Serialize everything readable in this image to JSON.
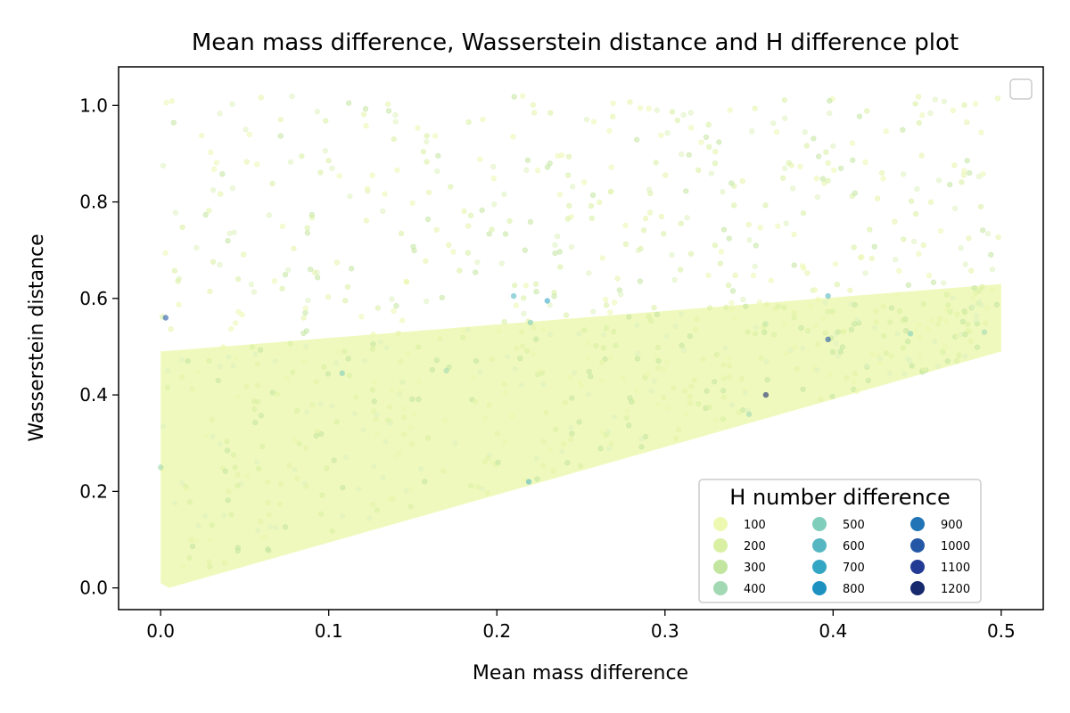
{
  "chart_data": {
    "type": "scatter",
    "title": "Mean mass difference, Wasserstein distance and H difference plot",
    "xlabel": "Mean mass difference",
    "ylabel": "Wasserstein distance",
    "xlim": [
      -0.025,
      0.525
    ],
    "ylim": [
      -0.045,
      1.08
    ],
    "xticks": [
      {
        "value": 0.0,
        "label": "0.0"
      },
      {
        "value": 0.1,
        "label": "0.1"
      },
      {
        "value": 0.2,
        "label": "0.2"
      },
      {
        "value": 0.3,
        "label": "0.3"
      },
      {
        "value": 0.4,
        "label": "0.4"
      },
      {
        "value": 0.5,
        "label": "0.5"
      }
    ],
    "yticks": [
      {
        "value": 0.0,
        "label": "0.0"
      },
      {
        "value": 0.2,
        "label": "0.2"
      },
      {
        "value": 0.4,
        "label": "0.4"
      },
      {
        "value": 0.6,
        "label": "0.6"
      },
      {
        "value": 0.8,
        "label": "0.8"
      },
      {
        "value": 1.0,
        "label": "1.0"
      }
    ],
    "grid": false,
    "dense_region": {
      "polygon": [
        [
          0.0,
          0.01
        ],
        [
          0.0,
          0.49
        ],
        [
          0.5,
          0.63
        ],
        [
          0.5,
          0.49
        ],
        [
          0.005,
          0.0
        ]
      ],
      "color": "#edf8b1"
    },
    "highlight_points": [
      {
        "x": 0.003,
        "y": 0.56,
        "h": 1000
      },
      {
        "x": 0.36,
        "y": 0.4,
        "h": 1200
      },
      {
        "x": 0.397,
        "y": 0.515,
        "h": 1000
      },
      {
        "x": 0.219,
        "y": 0.22,
        "h": 600
      },
      {
        "x": 0.21,
        "y": 0.605,
        "h": 600
      },
      {
        "x": 0.23,
        "y": 0.595,
        "h": 700
      },
      {
        "x": 0.108,
        "y": 0.445,
        "h": 500
      },
      {
        "x": 0.397,
        "y": 0.605,
        "h": 600
      },
      {
        "x": 0.446,
        "y": 0.527,
        "h": 500
      },
      {
        "x": 0.0,
        "y": 0.25,
        "h": 400
      },
      {
        "x": 0.22,
        "y": 0.55,
        "h": 500
      },
      {
        "x": 0.17,
        "y": 0.45,
        "h": 400
      },
      {
        "x": 0.35,
        "y": 0.36,
        "h": 400
      },
      {
        "x": 0.49,
        "y": 0.53,
        "h": 400
      }
    ],
    "legend": {
      "title": "H number difference",
      "placement": "lower-right",
      "entries": [
        {
          "label": "100",
          "color": "#edf8b1"
        },
        {
          "label": "200",
          "color": "#d9f0a3"
        },
        {
          "label": "300",
          "color": "#c2e5a0"
        },
        {
          "label": "400",
          "color": "#a2d9b4"
        },
        {
          "label": "500",
          "color": "#7fcdbb"
        },
        {
          "label": "600",
          "color": "#56b7c3"
        },
        {
          "label": "700",
          "color": "#33a6c4"
        },
        {
          "label": "800",
          "color": "#1d91c0"
        },
        {
          "label": "900",
          "color": "#2175b6"
        },
        {
          "label": "1000",
          "color": "#2458a6"
        },
        {
          "label": "1100",
          "color": "#243b95"
        },
        {
          "label": "1200",
          "color": "#172a6e"
        }
      ]
    },
    "empty_legend": {
      "placement": "upper-right"
    }
  }
}
